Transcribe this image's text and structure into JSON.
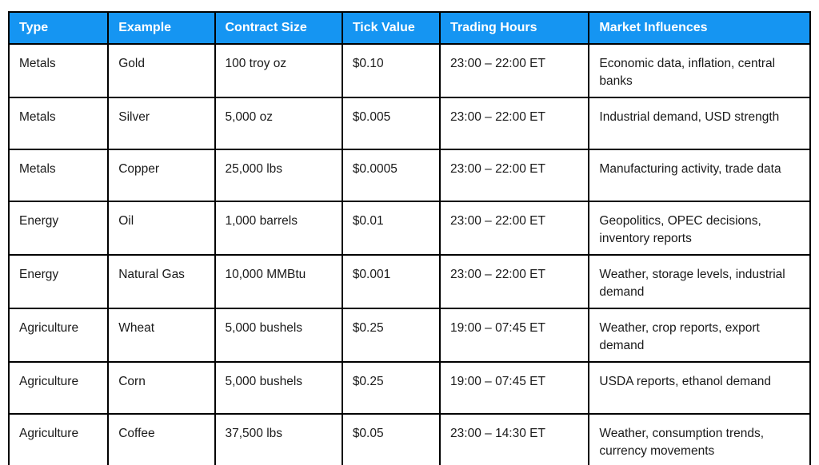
{
  "table": {
    "headers": [
      "Type",
      "Example",
      "Contract Size",
      "Tick Value",
      "Trading Hours",
      "Market Influences"
    ],
    "rows": [
      [
        "Metals",
        "Gold",
        "100 troy oz",
        "$0.10",
        "23:00 – 22:00 ET",
        "Economic data, inflation, central banks"
      ],
      [
        "Metals",
        "Silver",
        "5,000 oz",
        "$0.005",
        "23:00 – 22:00 ET",
        "Industrial demand, USD strength"
      ],
      [
        "Metals",
        "Copper",
        "25,000 lbs",
        "$0.0005",
        "23:00 – 22:00 ET",
        "Manufacturing activity, trade data"
      ],
      [
        "Energy",
        "Oil",
        "1,000 barrels",
        "$0.01",
        "23:00 – 22:00 ET",
        "Geopolitics, OPEC decisions, inventory reports"
      ],
      [
        "Energy",
        "Natural Gas",
        "10,000 MMBtu",
        "$0.001",
        "23:00 – 22:00 ET",
        "Weather, storage levels, industrial demand"
      ],
      [
        "Agriculture",
        "Wheat",
        "5,000 bushels",
        "$0.25",
        "19:00 – 07:45 ET",
        "Weather, crop reports, export demand"
      ],
      [
        "Agriculture",
        "Corn",
        "5,000 bushels",
        "$0.25",
        "19:00 – 07:45 ET",
        "USDA reports, ethanol demand"
      ],
      [
        "Agriculture",
        "Coffee",
        "37,500 lbs",
        "$0.05",
        "23:00 – 14:30 ET",
        "Weather, consumption trends, currency movements"
      ]
    ]
  },
  "colors": {
    "header_bg": "#1595f2",
    "header_text": "#ffffff",
    "border": "#000000"
  }
}
